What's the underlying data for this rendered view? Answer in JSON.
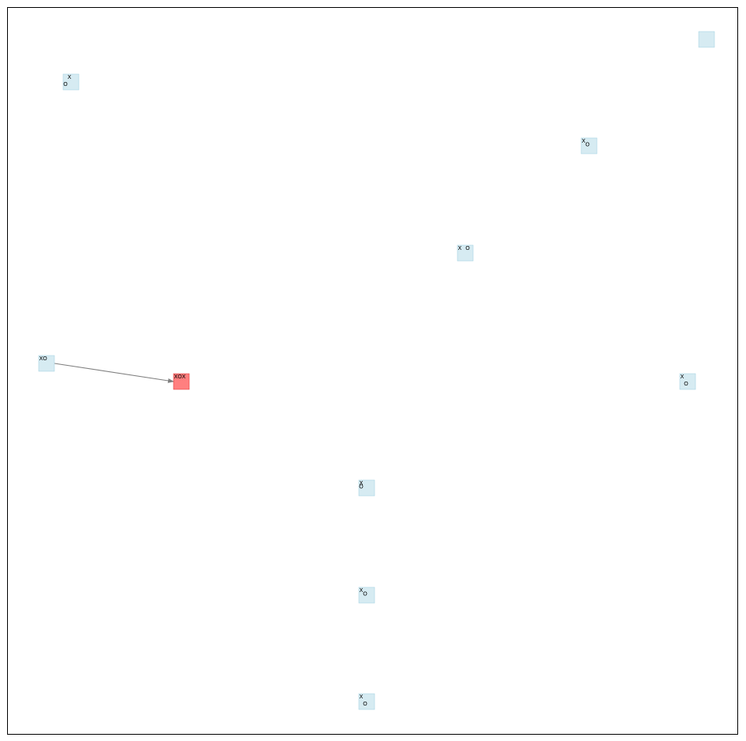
{
  "colors": {
    "node_fill": "#add8e6",
    "terminal_fill": "#ff0000",
    "edge": "#808080",
    "frame": "#000000"
  },
  "nodes": [
    {
      "id": "n-top-right",
      "terminal": false,
      "board": [
        "",
        "",
        "",
        "",
        "",
        "",
        "",
        "",
        ""
      ]
    },
    {
      "id": "n-upper-left",
      "terminal": false,
      "board": [
        "",
        "X",
        "",
        "",
        "",
        "",
        "O",
        "",
        ""
      ]
    },
    {
      "id": "n-upper-right",
      "terminal": false,
      "board": [
        "X",
        "",
        "",
        "",
        "O",
        "",
        "",
        "",
        ""
      ]
    },
    {
      "id": "n-mid-upper",
      "terminal": false,
      "board": [
        "X",
        "",
        "O",
        "",
        "",
        "",
        "",
        "",
        ""
      ]
    },
    {
      "id": "n-left-source",
      "terminal": false,
      "board": [
        "X",
        "O",
        "",
        "",
        "",
        "",
        "",
        "",
        ""
      ]
    },
    {
      "id": "n-terminal",
      "terminal": true,
      "board": [
        "X",
        "O",
        "X",
        "",
        "",
        "",
        "",
        "",
        ""
      ]
    },
    {
      "id": "n-right",
      "terminal": false,
      "board": [
        "X",
        "",
        "",
        "",
        "",
        "",
        "",
        "O",
        ""
      ]
    },
    {
      "id": "n-lower-1",
      "terminal": false,
      "board": [
        "X",
        "",
        "",
        "O",
        "",
        "",
        "",
        "",
        ""
      ]
    },
    {
      "id": "n-lower-2",
      "terminal": false,
      "board": [
        "X",
        "",
        "",
        "",
        "O",
        "",
        "",
        "",
        ""
      ]
    },
    {
      "id": "n-bottom",
      "terminal": false,
      "board": [
        "X",
        "",
        "",
        "",
        "",
        "",
        "",
        "O",
        ""
      ]
    }
  ],
  "edges": [
    {
      "from": "n-left-source",
      "to": "n-terminal"
    }
  ]
}
